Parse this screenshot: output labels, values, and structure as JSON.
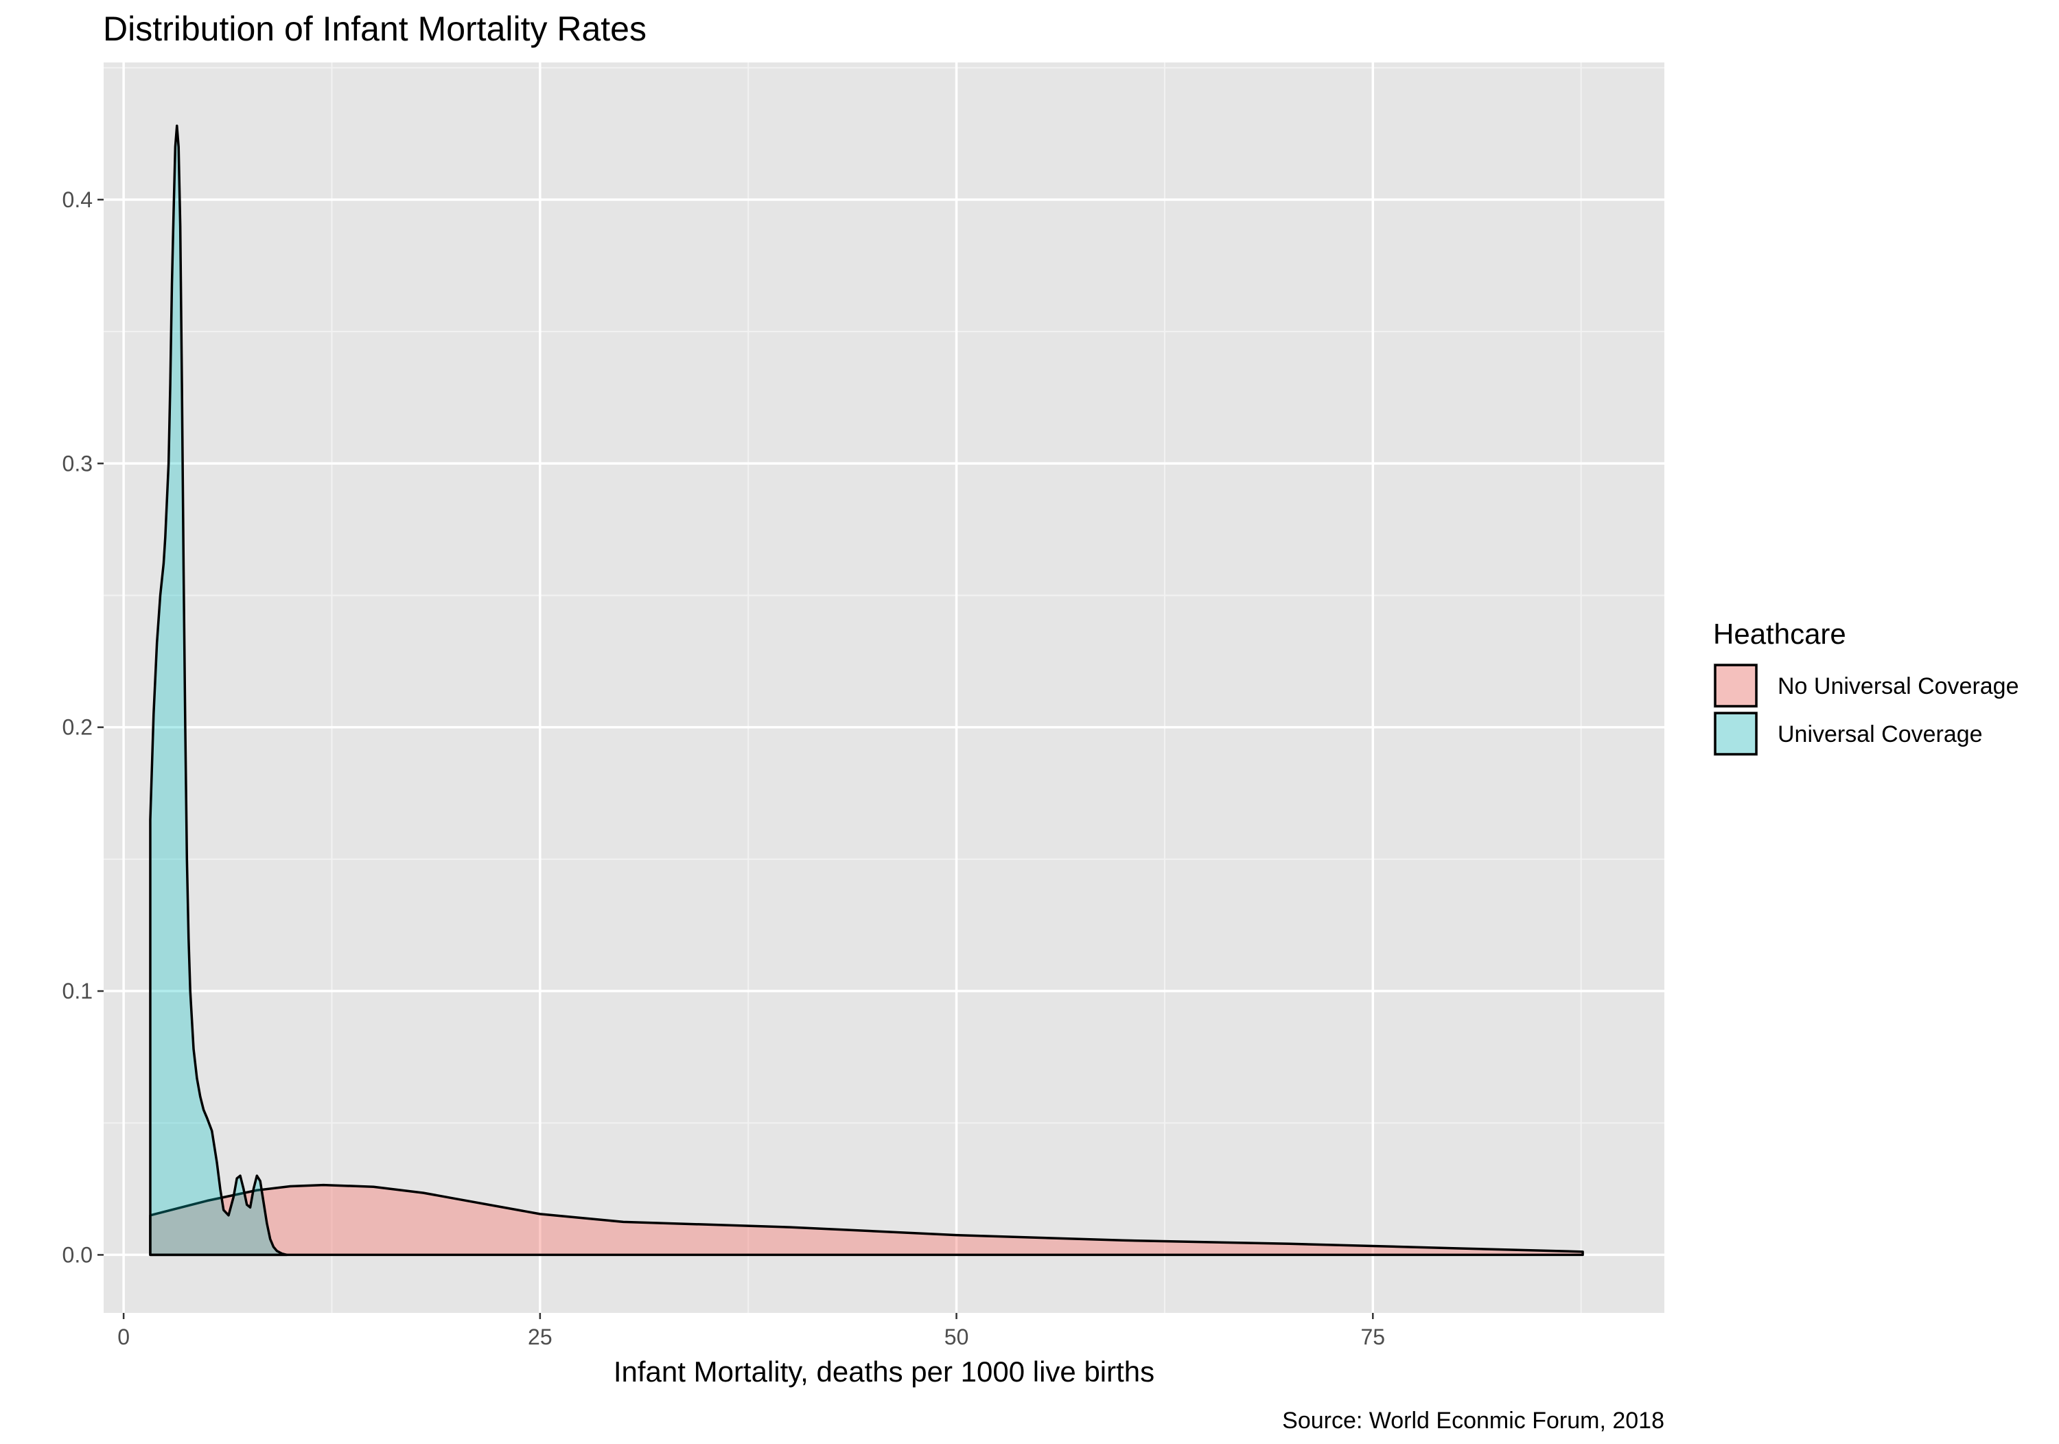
{
  "chart_data": {
    "type": "area",
    "subtype": "density",
    "title": "Distribution of Infant Mortality Rates",
    "xlabel": "Infant Mortality, deaths per 1000 live births",
    "ylabel": "",
    "caption": "Source: World Econmic Forum, 2018",
    "xlim": [
      -1.2,
      92.5
    ],
    "ylim": [
      -0.022,
      0.452
    ],
    "x_ticks": [
      0,
      25,
      50,
      75
    ],
    "x_tick_labels": [
      "0",
      "25",
      "50",
      "75"
    ],
    "y_ticks": [
      0.0,
      0.1,
      0.2,
      0.3,
      0.4
    ],
    "y_tick_labels": [
      "0.0",
      "0.1",
      "0.2",
      "0.3",
      "0.4"
    ],
    "grid": true,
    "panel_background": "#e5e5e5",
    "legend": {
      "title": "Heathcare",
      "position": "right",
      "entries": [
        "No Universal Coverage",
        "Universal Coverage"
      ]
    },
    "series": [
      {
        "name": "No Universal Coverage",
        "color": "#f8766d",
        "opacity": 0.4,
        "x": [
          1.6,
          5,
          8,
          10,
          12,
          15,
          18,
          20,
          25,
          30,
          40,
          50,
          60,
          70,
          80,
          87.6
        ],
        "y": [
          0.015,
          0.0205,
          0.0245,
          0.026,
          0.0265,
          0.0258,
          0.0235,
          0.0212,
          0.0155,
          0.0125,
          0.0105,
          0.0075,
          0.0055,
          0.0042,
          0.0025,
          0.0012
        ]
      },
      {
        "name": "Universal Coverage",
        "color": "#00bfc4",
        "opacity": 0.3,
        "x": [
          1.6,
          1.6,
          1.7,
          1.8,
          2.0,
          2.2,
          2.4,
          2.5,
          2.7,
          2.8,
          2.9,
          3.0,
          3.1,
          3.2,
          3.3,
          3.4,
          3.5,
          3.6,
          3.7,
          3.8,
          3.9,
          4.0,
          4.2,
          4.4,
          4.6,
          4.8,
          5.0,
          5.3,
          5.6,
          5.8,
          6.0,
          6.3,
          6.6,
          6.8,
          7.0,
          7.2,
          7.4,
          7.6,
          7.8,
          8.0,
          8.2,
          8.4,
          8.6,
          8.8,
          9.0,
          9.2,
          9.5,
          9.8
        ],
        "y": [
          0,
          0.165,
          0.185,
          0.205,
          0.232,
          0.25,
          0.262,
          0.272,
          0.3,
          0.33,
          0.368,
          0.395,
          0.42,
          0.428,
          0.42,
          0.39,
          0.33,
          0.26,
          0.2,
          0.15,
          0.12,
          0.1,
          0.078,
          0.067,
          0.06,
          0.055,
          0.052,
          0.047,
          0.035,
          0.025,
          0.017,
          0.015,
          0.022,
          0.029,
          0.03,
          0.025,
          0.019,
          0.018,
          0.025,
          0.03,
          0.028,
          0.02,
          0.012,
          0.006,
          0.003,
          0.0015,
          0.0005,
          0
        ]
      }
    ]
  }
}
